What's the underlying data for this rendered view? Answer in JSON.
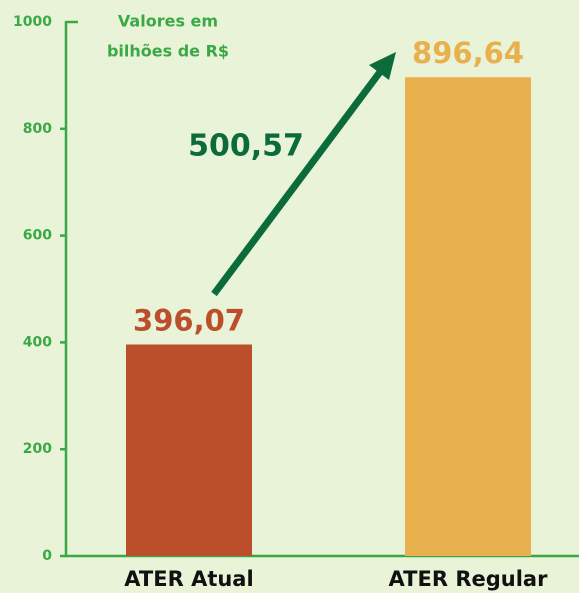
{
  "chart_data": {
    "type": "bar",
    "ylabel": [
      "Valores em",
      "bilhões de R$"
    ],
    "categories": [
      "ATER Atual",
      "ATER Regular"
    ],
    "values": [
      396.07,
      896.64
    ],
    "value_labels": [
      "396,07",
      "896,64"
    ],
    "colors": [
      "#bb4f2b",
      "#e9b04e"
    ],
    "annotation": "500,57",
    "ylim": [
      0,
      1000
    ],
    "yticks": [
      0,
      200,
      400,
      600,
      800,
      1000
    ],
    "grid": false
  }
}
